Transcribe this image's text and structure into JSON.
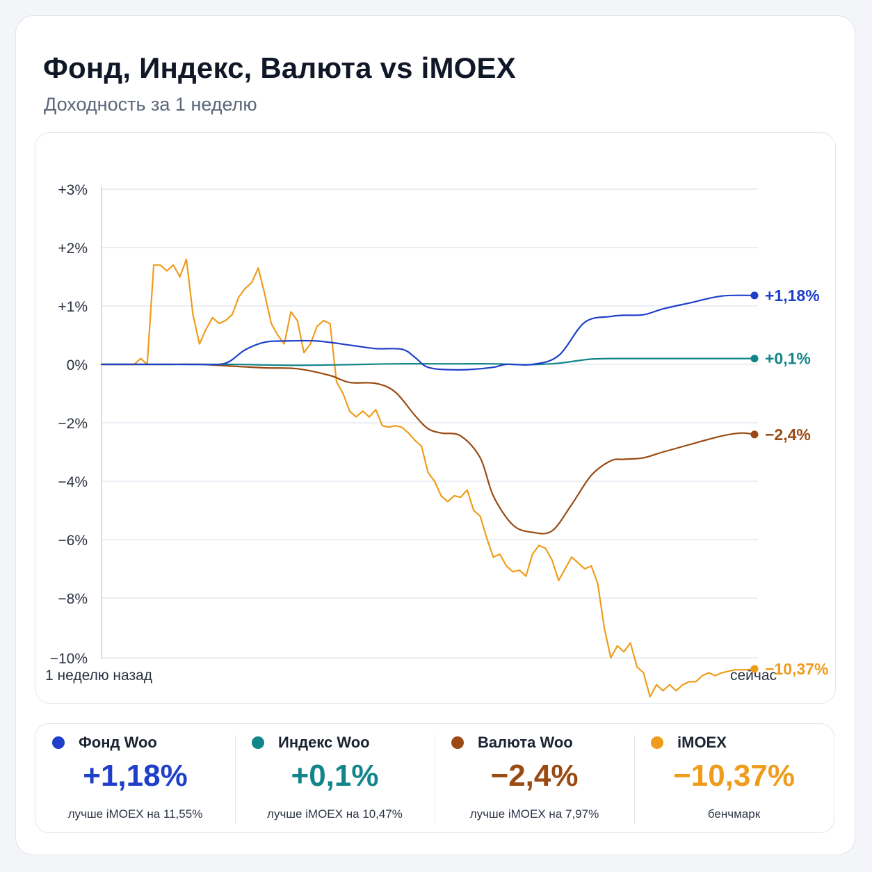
{
  "header": {
    "title": "Фонд, Индекс, Валюта vs iMOEX",
    "subtitle": "Доходность за 1 неделю"
  },
  "colors": {
    "fund": "#1f3fc9",
    "index": "#12858a",
    "currency": "#9a4a12",
    "imoex": "#ef9c1c",
    "grid": "#dfe4ee",
    "axis": "#c9d0dc"
  },
  "chart_data": {
    "type": "line",
    "title": "Фонд, Индекс, Валюта vs iMOEX",
    "subtitle": "Доходность за 1 неделю",
    "xlabel": "",
    "ylabel": "",
    "x_start_label": "1 неделю назад",
    "x_end_label": "сейчас",
    "x_range": [
      0,
      100
    ],
    "y_ticks": [
      "+3%",
      "+2%",
      "+1%",
      "0%",
      "−2%",
      "−4%",
      "−6%",
      "−8%",
      "−10%"
    ],
    "y_tick_values": [
      3,
      2,
      1,
      0,
      -2,
      -4,
      -6,
      -8,
      -10
    ],
    "grid": true,
    "series": [
      {
        "name": "Фонд Woo",
        "color_key": "fund",
        "end_label": "+1,18%",
        "x": [
          0,
          10,
          15,
          19,
          22,
          25,
          28,
          33,
          38,
          42,
          46,
          48,
          49.5,
          51,
          53,
          56,
          60,
          62,
          66,
          70,
          74,
          78,
          80,
          83,
          86,
          90,
          95,
          100
        ],
        "y": [
          0,
          0,
          0,
          0.02,
          0.25,
          0.38,
          0.4,
          0.4,
          0.33,
          0.27,
          0.26,
          0.12,
          -0.05,
          -0.15,
          -0.18,
          -0.18,
          -0.1,
          0.0,
          0.0,
          0.15,
          0.72,
          0.82,
          0.84,
          0.85,
          0.95,
          1.05,
          1.17,
          1.18
        ]
      },
      {
        "name": "Индекс Woo",
        "color_key": "index",
        "end_label": "+0,1%",
        "x": [
          0,
          10,
          20,
          25,
          30,
          35,
          40,
          45,
          50,
          55,
          60,
          63,
          66,
          70,
          75,
          80,
          85,
          90,
          95,
          100
        ],
        "y": [
          0,
          0,
          0,
          -0.02,
          -0.03,
          -0.02,
          0.0,
          0.01,
          0.01,
          0.01,
          0.01,
          0.0,
          -0.01,
          0.02,
          0.09,
          0.1,
          0.1,
          0.1,
          0.1,
          0.1
        ]
      },
      {
        "name": "Валюта Woo",
        "color_key": "currency",
        "end_label": "−2,4%",
        "x": [
          0,
          10,
          15,
          20,
          25,
          30,
          35,
          38,
          42,
          45,
          48,
          50,
          52,
          55,
          58,
          60,
          63,
          66,
          69,
          72,
          75,
          78,
          80,
          83,
          86,
          90,
          95,
          98,
          100
        ],
        "y": [
          0,
          0,
          0,
          -0.06,
          -0.12,
          -0.15,
          -0.38,
          -0.62,
          -0.65,
          -0.95,
          -1.75,
          -2.2,
          -2.35,
          -2.45,
          -3.2,
          -4.5,
          -5.5,
          -5.75,
          -5.7,
          -4.8,
          -3.8,
          -3.3,
          -3.25,
          -3.2,
          -3.0,
          -2.75,
          -2.45,
          -2.35,
          -2.4
        ]
      },
      {
        "name": "iMOEX",
        "color_key": "imoex",
        "end_label": "−10,37%",
        "x": [
          0,
          5,
          6,
          7,
          8,
          9,
          10,
          11,
          12,
          13,
          14,
          15,
          16,
          17,
          18,
          19,
          20,
          21,
          22,
          23,
          24,
          25,
          26,
          27,
          28,
          29,
          30,
          31,
          32,
          33,
          34,
          35,
          36,
          37,
          38,
          39,
          40,
          41,
          42,
          43,
          44,
          45,
          46,
          47,
          48,
          49,
          50,
          51,
          52,
          53,
          54,
          55,
          56,
          57,
          58,
          59,
          60,
          61,
          62,
          63,
          64,
          65,
          66,
          67,
          68,
          69,
          70,
          71,
          72,
          73,
          74,
          75,
          76,
          77,
          78,
          79,
          80,
          81,
          82,
          83,
          84,
          85,
          86,
          87,
          88,
          89,
          90,
          91,
          92,
          93,
          94,
          95,
          96,
          97,
          98,
          99,
          100
        ],
        "y": [
          0,
          0,
          0.1,
          0.0,
          1.7,
          1.7,
          1.6,
          1.7,
          1.5,
          1.8,
          0.85,
          0.35,
          0.6,
          0.8,
          0.7,
          0.75,
          0.85,
          1.15,
          1.3,
          1.4,
          1.65,
          1.2,
          0.7,
          0.5,
          0.35,
          0.9,
          0.75,
          0.2,
          0.35,
          0.65,
          0.75,
          0.7,
          -0.6,
          -1.0,
          -1.6,
          -1.8,
          -1.6,
          -1.8,
          -1.55,
          -2.1,
          -2.15,
          -2.1,
          -2.15,
          -2.35,
          -2.6,
          -2.8,
          -3.7,
          -4.0,
          -4.5,
          -4.7,
          -4.5,
          -4.55,
          -4.3,
          -5.0,
          -5.2,
          -5.95,
          -6.6,
          -6.5,
          -6.9,
          -7.1,
          -7.05,
          -7.25,
          -6.5,
          -6.2,
          -6.3,
          -6.7,
          -7.4,
          -7.0,
          -6.6,
          -6.8,
          -7.0,
          -6.9,
          -7.5,
          -9.0,
          -10.0,
          -9.6,
          -9.8,
          -9.5,
          -10.3,
          -10.5,
          -11.3,
          -10.9,
          -11.1,
          -10.9,
          -11.1,
          -10.9,
          -10.8,
          -10.8,
          -10.6,
          -10.5,
          -10.6,
          -10.5,
          -10.45,
          -10.4,
          -10.4,
          -10.4,
          -10.37
        ]
      }
    ]
  },
  "legend": [
    {
      "name": "Фонд Woo",
      "color_key": "fund",
      "value": "+1,18%",
      "note": "лучше iMOEX на 11,55%"
    },
    {
      "name": "Индекс Woo",
      "color_key": "index",
      "value": "+0,1%",
      "note": "лучше iMOEX на 10,47%"
    },
    {
      "name": "Валюта Woo",
      "color_key": "currency",
      "value": "−2,4%",
      "note": "лучше iMOEX на 7,97%"
    },
    {
      "name": "iMOEX",
      "color_key": "imoex",
      "value": "−10,37%",
      "note": "бенчмарк"
    }
  ]
}
